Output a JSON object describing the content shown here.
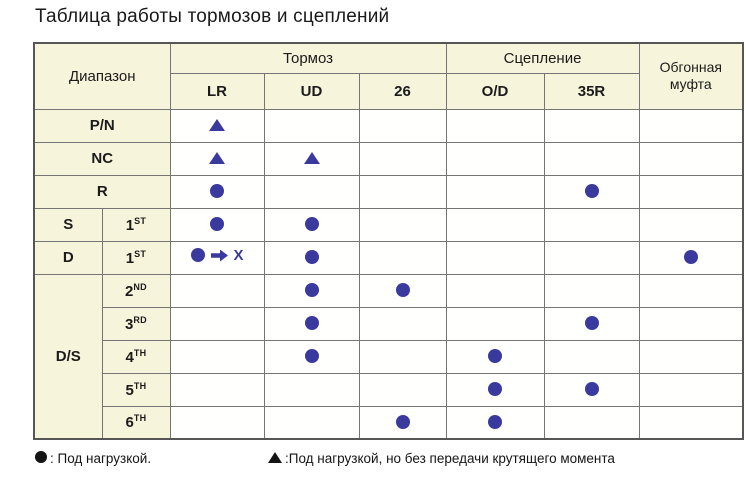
{
  "title": "Таблица работы тормозов и сцеплений",
  "colors": {
    "header_bg": "#f7f4dc",
    "marker_blue": "#3a3a9e",
    "grid_line": "#757575",
    "legend_symbol": "#141414"
  },
  "table": {
    "range_header": "Диапазон",
    "brake_group": "Тормоз",
    "clutch_group": "Сцепление",
    "overrun_header": "Обгонная муфта",
    "brake_columns": [
      "LR",
      "UD",
      "26"
    ],
    "clutch_columns": [
      "O/D",
      "35R"
    ],
    "arrow_x": {
      "arrow_icon": "arrow-right-icon",
      "x": "X"
    },
    "rows": [
      {
        "label": "P/N",
        "label_colspan": 2,
        "cells": [
          "triangle",
          "",
          "",
          "",
          "",
          ""
        ]
      },
      {
        "label": "NC",
        "label_colspan": 2,
        "cells": [
          "triangle",
          "triangle",
          "",
          "",
          "",
          ""
        ]
      },
      {
        "label": "R",
        "label_colspan": 2,
        "cells": [
          "circle",
          "",
          "",
          "",
          "circle",
          ""
        ]
      },
      {
        "label": "S",
        "gear_num": "1",
        "gear_sup": "ST",
        "cells": [
          "circle",
          "circle",
          "",
          "",
          "",
          ""
        ]
      },
      {
        "label": "D",
        "gear_num": "1",
        "gear_sup": "ST",
        "cells": [
          "circle_arrow_x",
          "circle",
          "",
          "",
          "",
          "circle"
        ]
      },
      {
        "label": "D/S",
        "label_rowspan": 5,
        "gear_num": "2",
        "gear_sup": "ND",
        "cells": [
          "",
          "circle",
          "circle",
          "",
          "",
          ""
        ]
      },
      {
        "gear_num": "3",
        "gear_sup": "RD",
        "cells": [
          "",
          "circle",
          "",
          "",
          "circle",
          ""
        ]
      },
      {
        "gear_num": "4",
        "gear_sup": "TH",
        "cells": [
          "",
          "circle",
          "",
          "circle",
          "",
          ""
        ]
      },
      {
        "gear_num": "5",
        "gear_sup": "TH",
        "cells": [
          "",
          "",
          "",
          "circle",
          "circle",
          ""
        ]
      },
      {
        "gear_num": "6",
        "gear_sup": "TH",
        "cells": [
          "",
          "",
          "circle",
          "circle",
          "",
          ""
        ]
      }
    ]
  },
  "legend": {
    "load": {
      "symbol": "circle",
      "text": ": Под нагрузкой."
    },
    "no_torque": {
      "symbol": "triangle",
      "text": ":Под нагрузкой, но без передачи крутящего момента"
    }
  }
}
